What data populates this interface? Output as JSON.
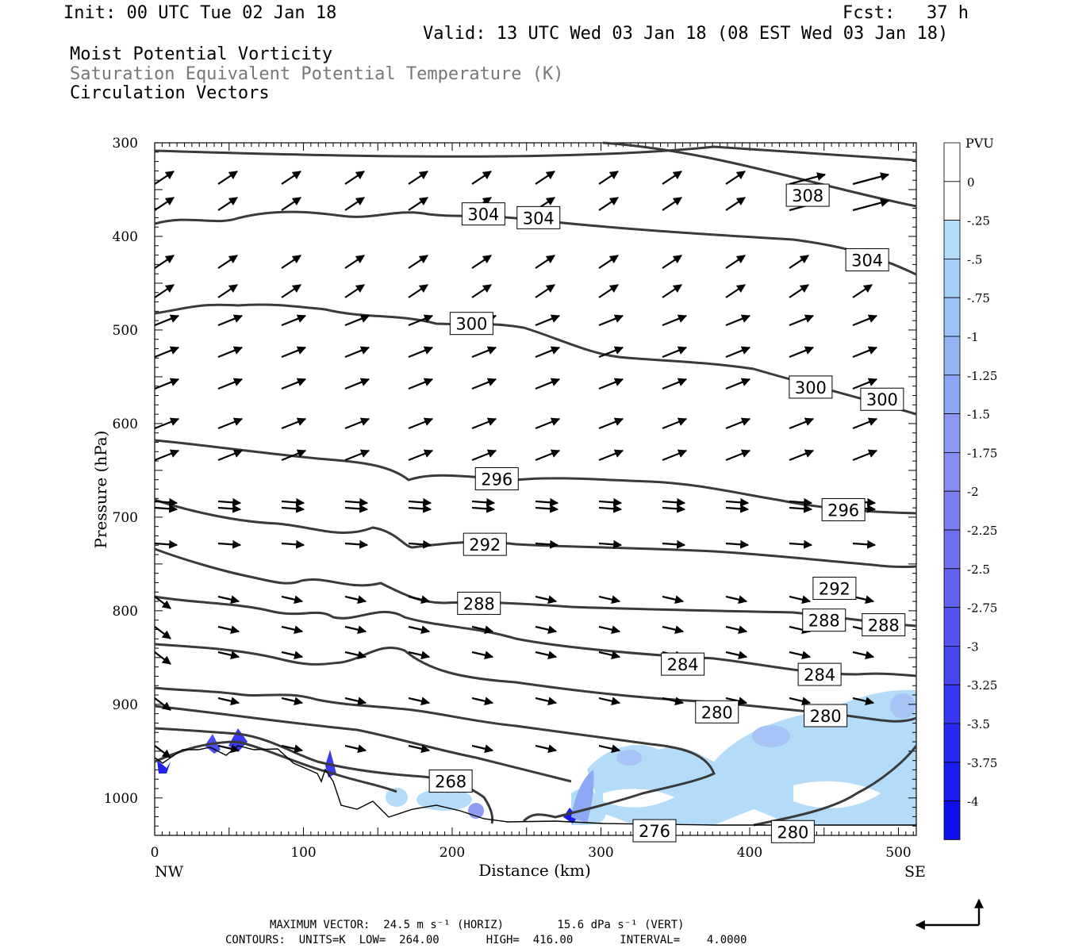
{
  "header": {
    "init": "Init: 00 UTC Tue 02 Jan 18",
    "fcst": "Fcst:   37 h",
    "valid": "Valid: 13 UTC Wed 03 Jan 18 (08 EST Wed 03 Jan 18)",
    "fields": [
      "Moist Potential Vorticity",
      "Saturation Equivalent Potential Temperature (K)",
      "Circulation Vectors"
    ]
  },
  "colors": {
    "contour": "#3a3a3a",
    "field_gray": "#777777",
    "mpv_light": "#b4dcf8",
    "mpv_mid": "#8f9cf2",
    "mpv_dark": "#2222ee"
  },
  "chart_data": {
    "type": "cross-section",
    "xlabel": "Distance (km)",
    "ylabel": "Pressure (hPa)",
    "xlim": [
      0,
      512
    ],
    "ylim": [
      1040,
      300
    ],
    "x_ticks": [
      0,
      100,
      200,
      300,
      400,
      500
    ],
    "y_ticks": [
      300,
      400,
      500,
      600,
      700,
      800,
      900,
      1000
    ],
    "x_end_labels": {
      "left": "NW",
      "right": "SE"
    },
    "contour_labels": [
      {
        "text": "304",
        "x": 221,
        "p": 376
      },
      {
        "text": "304",
        "x": 258,
        "p": 380
      },
      {
        "text": "308",
        "x": 439,
        "p": 356
      },
      {
        "text": "304",
        "x": 479,
        "p": 425
      },
      {
        "text": "300",
        "x": 213,
        "p": 493
      },
      {
        "text": "300",
        "x": 441,
        "p": 561
      },
      {
        "text": "300",
        "x": 489,
        "p": 574
      },
      {
        "text": "296",
        "x": 230,
        "p": 659
      },
      {
        "text": "296",
        "x": 463,
        "p": 692
      },
      {
        "text": "292",
        "x": 222,
        "p": 729
      },
      {
        "text": "292",
        "x": 457,
        "p": 776
      },
      {
        "text": "288",
        "x": 218,
        "p": 792
      },
      {
        "text": "288",
        "x": 450,
        "p": 810
      },
      {
        "text": "288",
        "x": 490,
        "p": 815
      },
      {
        "text": "284",
        "x": 355,
        "p": 857
      },
      {
        "text": "284",
        "x": 447,
        "p": 868
      },
      {
        "text": "280",
        "x": 378,
        "p": 908
      },
      {
        "text": "280",
        "x": 451,
        "p": 912
      },
      {
        "text": "268",
        "x": 199,
        "p": 982
      },
      {
        "text": "276",
        "x": 336,
        "p": 1035
      },
      {
        "text": "280",
        "x": 429,
        "p": 1036
      }
    ],
    "colorbar": {
      "unit": "PVU",
      "labels": [
        "0",
        "-.25",
        "-.5",
        "-.75",
        "-1",
        "-1.25",
        "-1.5",
        "-1.75",
        "-2",
        "-2.25",
        "-2.5",
        "-2.75",
        "-3",
        "-3.25",
        "-3.5",
        "-3.75",
        "-4"
      ]
    }
  },
  "footer": {
    "max_vector": "MAXIMUM VECTOR:  24.5 m s⁻¹ (HORIZ)        15.6 dPa s⁻¹ (VERT)",
    "contours": "CONTOURS:  UNITS=K  LOW=  264.00       HIGH=  416.00       INTERVAL=    4.0000"
  }
}
